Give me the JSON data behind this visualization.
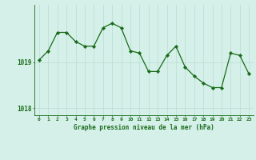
{
  "x": [
    0,
    1,
    2,
    3,
    4,
    5,
    6,
    7,
    8,
    9,
    10,
    11,
    12,
    13,
    14,
    15,
    16,
    17,
    18,
    19,
    20,
    21,
    22,
    23
  ],
  "y": [
    1019.05,
    1019.25,
    1019.65,
    1019.65,
    1019.45,
    1019.35,
    1019.35,
    1019.75,
    1019.85,
    1019.75,
    1019.25,
    1019.2,
    1018.8,
    1018.8,
    1019.15,
    1019.35,
    1018.9,
    1018.7,
    1018.55,
    1018.45,
    1018.45,
    1019.2,
    1019.15,
    1018.75
  ],
  "line_color": "#1a6b1a",
  "marker_color": "#1a6b1a",
  "bg_color": "#d4f0e8",
  "grid_color": "#b8ddd4",
  "axis_label_color": "#1a6b1a",
  "tick_color": "#1a6b1a",
  "xlabel": "Graphe pression niveau de la mer (hPa)",
  "yticks": [
    1018,
    1019
  ],
  "ylim": [
    1017.85,
    1020.25
  ],
  "xlim": [
    -0.5,
    23.5
  ]
}
